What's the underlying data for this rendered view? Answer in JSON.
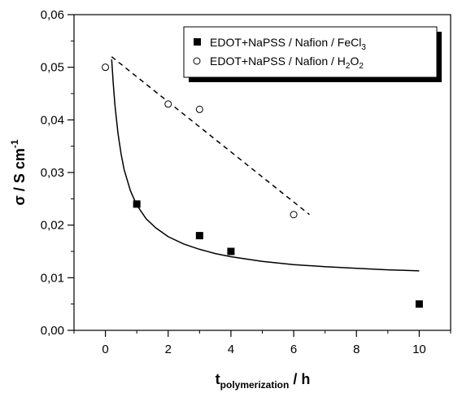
{
  "chart_data": {
    "type": "scatter",
    "xlabel": {
      "main": "t",
      "sub": "polymerization",
      "unit": " / h"
    },
    "ylabel": {
      "main": "σ / S cm",
      "sup": "-1"
    },
    "xlim": [
      -1,
      11
    ],
    "ylim": [
      0,
      0.06
    ],
    "x_ticks": [
      0,
      2,
      4,
      6,
      8,
      10
    ],
    "x_tick_labels": [
      "0",
      "2",
      "4",
      "6",
      "8",
      "10"
    ],
    "y_ticks": [
      0,
      0.01,
      0.02,
      0.03,
      0.04,
      0.05,
      0.06
    ],
    "y_tick_labels": [
      "0,00",
      "0,01",
      "0,02",
      "0,03",
      "0,04",
      "0,05",
      "0,06"
    ],
    "grid": false,
    "legend_position": "top-right",
    "series": [
      {
        "name": "EDOT+NaPSS / Nafion / FeCl",
        "name_sub": "3",
        "marker": "filled-square",
        "color": "#000000",
        "x": [
          1,
          3,
          4,
          10
        ],
        "y": [
          0.024,
          0.018,
          0.015,
          0.005
        ],
        "fit": {
          "style": "solid",
          "x": [
            0.2,
            0.25,
            0.3,
            0.4,
            0.5,
            0.6,
            0.8,
            1.0,
            1.3,
            1.6,
            2.0,
            2.5,
            3.0,
            3.5,
            4.0,
            5.0,
            6.0,
            7.0,
            8.0,
            9.0,
            10.0
          ],
          "y": [
            0.0515,
            0.047,
            0.043,
            0.0375,
            0.0335,
            0.0305,
            0.0265,
            0.0238,
            0.0212,
            0.0195,
            0.0178,
            0.0164,
            0.0154,
            0.0146,
            0.014,
            0.0131,
            0.0125,
            0.0121,
            0.0118,
            0.0115,
            0.0113
          ]
        }
      },
      {
        "name": "EDOT+NaPSS / Nafion / H",
        "name_sub": "2",
        "name_tail": "O",
        "name_sub2": "2",
        "marker": "open-circle",
        "color": "#000000",
        "x": [
          0,
          2,
          3,
          6
        ],
        "y": [
          0.05,
          0.043,
          0.042,
          0.022
        ],
        "fit": {
          "style": "dashed",
          "x": [
            0.2,
            6.5
          ],
          "y": [
            0.052,
            0.022
          ]
        }
      }
    ]
  }
}
